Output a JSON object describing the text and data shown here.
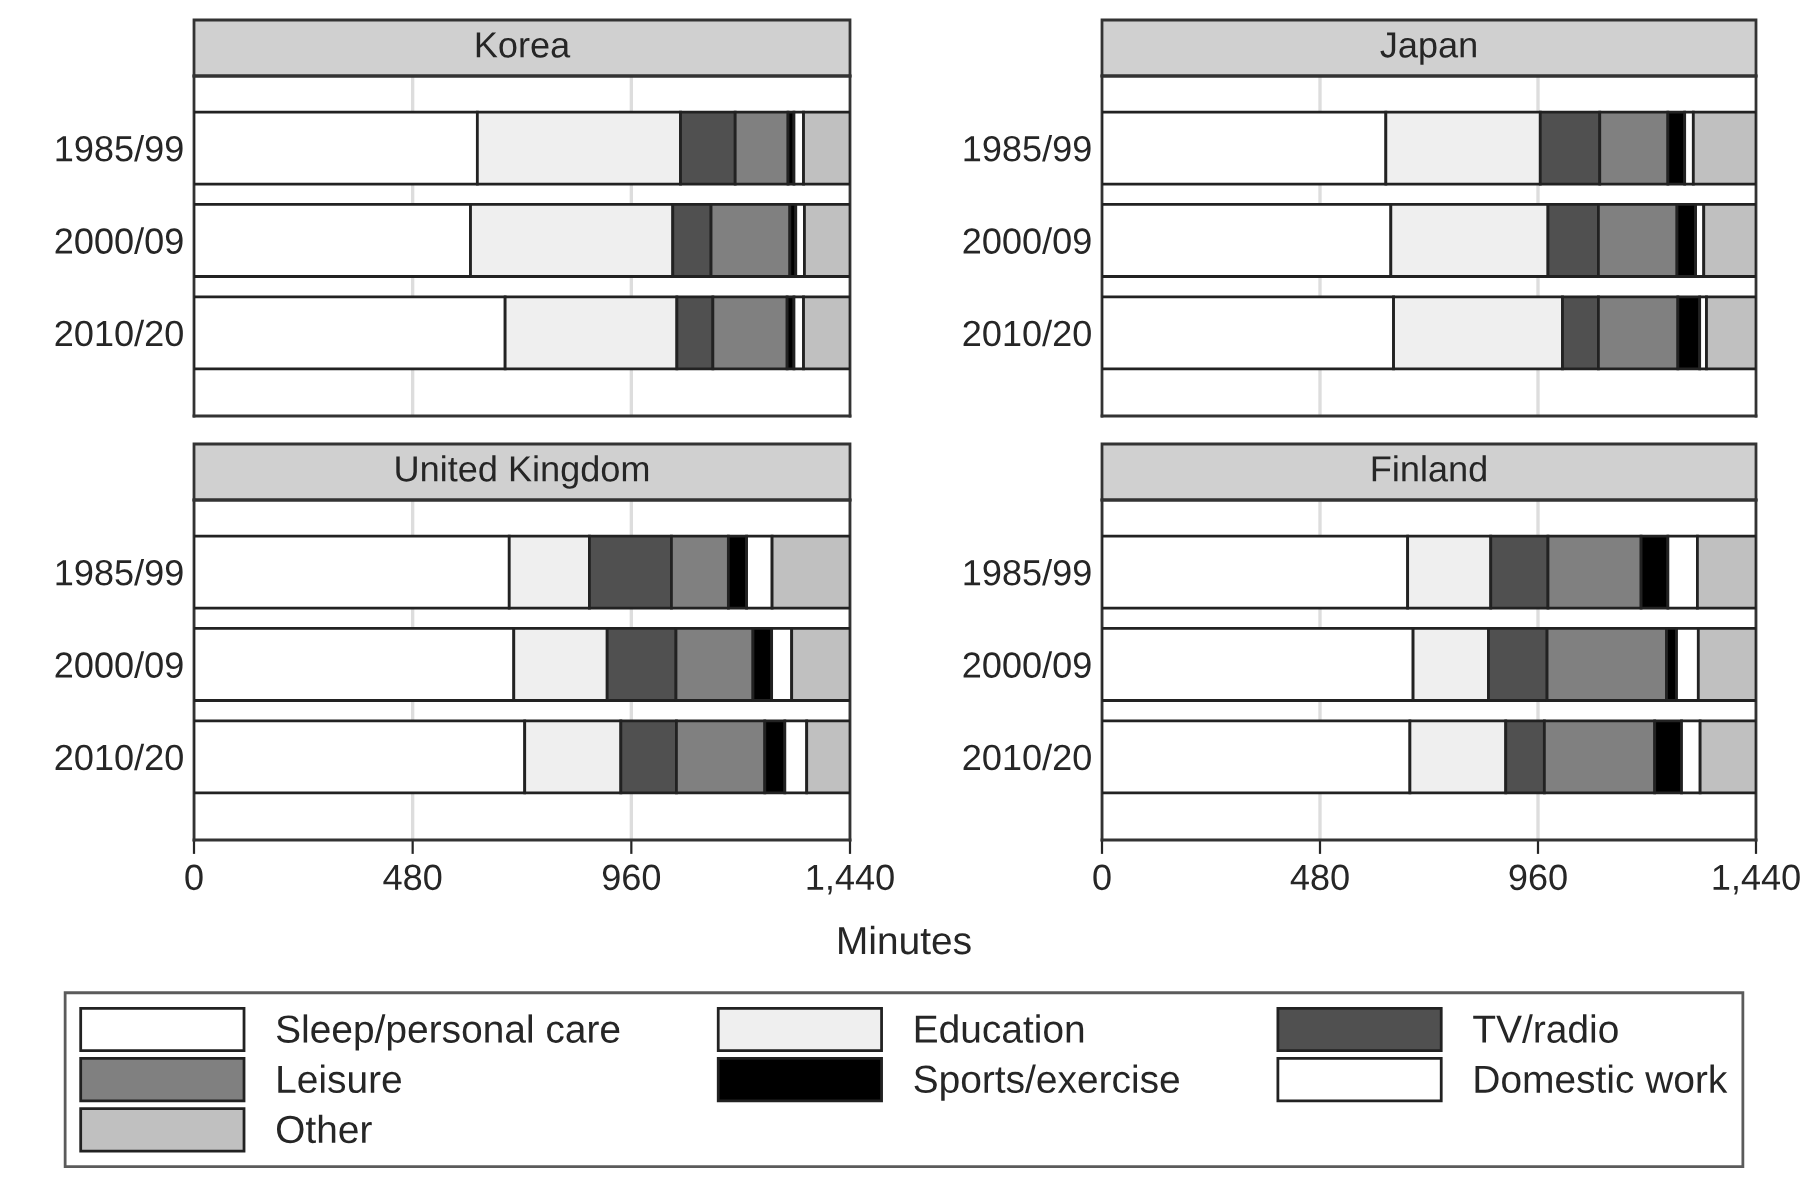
{
  "chart_data": [
    {
      "type": "bar",
      "orientation": "horizontal",
      "stacked": true,
      "title": "Korea",
      "categories": [
        "1985/99",
        "2000/09",
        "2010/20"
      ],
      "xlim": [
        0,
        1440
      ],
      "xticks": [
        480,
        960
      ],
      "grid": "x",
      "tick_labels": "y",
      "legend": "bottom",
      "series": [
        {
          "name": "Sleep/personal care",
          "color": "#ffffff",
          "values": [
            622,
            607,
            683
          ]
        },
        {
          "name": "Education",
          "color": "#efefef",
          "values": [
            446,
            444,
            377
          ]
        },
        {
          "name": "TV/radio",
          "color": "#505050",
          "values": [
            120,
            84,
            79
          ]
        },
        {
          "name": "Leisure",
          "color": "#808080",
          "values": [
            116,
            173,
            163
          ]
        },
        {
          "name": "Sports/exercise",
          "color": "#000000",
          "values": [
            13,
            13,
            15
          ]
        },
        {
          "name": "Domestic work",
          "color": "#ffffff",
          "values": [
            21,
            19,
            21
          ]
        },
        {
          "name": "Other",
          "color": "#c0c0c0",
          "values": [
            102,
            100,
            102
          ]
        }
      ]
    },
    {
      "type": "bar",
      "orientation": "horizontal",
      "stacked": true,
      "title": "Japan",
      "categories": [
        "1985/99",
        "2000/09",
        "2010/20"
      ],
      "xlim": [
        0,
        1440
      ],
      "xticks": [
        480,
        960
      ],
      "grid": "x",
      "tick_labels": "y",
      "series": [
        {
          "color": "#ffffff",
          "values": [
            625,
            636,
            642
          ]
        },
        {
          "color": "#efefef",
          "values": [
            340,
            346,
            372
          ]
        },
        {
          "color": "#505050",
          "values": [
            131,
            111,
            79
          ]
        },
        {
          "color": "#808080",
          "values": [
            150,
            173,
            175
          ]
        },
        {
          "color": "#000000",
          "values": [
            37,
            41,
            48
          ]
        },
        {
          "color": "#ffffff",
          "values": [
            19,
            18,
            15
          ]
        },
        {
          "color": "#c0c0c0",
          "values": [
            138,
            115,
            109
          ]
        }
      ]
    },
    {
      "type": "bar",
      "orientation": "horizontal",
      "stacked": true,
      "title": "United Kingdom",
      "categories": [
        "1985/99",
        "2000/09",
        "2010/20"
      ],
      "xlim": [
        0,
        1440
      ],
      "xticks": [
        0,
        480,
        960,
        {
          "value": 1440,
          "label": "1,440"
        }
      ],
      "grid": "x",
      "xlabel": "Minutes",
      "series": [
        {
          "color": "#ffffff",
          "values": [
            692,
            702,
            726
          ]
        },
        {
          "color": "#efefef",
          "values": [
            176,
            205,
            211
          ]
        },
        {
          "color": "#505050",
          "values": [
            180,
            151,
            122
          ]
        },
        {
          "color": "#808080",
          "values": [
            125,
            169,
            194
          ]
        },
        {
          "color": "#000000",
          "values": [
            40,
            41,
            44
          ]
        },
        {
          "color": "#ffffff",
          "values": [
            56,
            44,
            48
          ]
        },
        {
          "color": "#c0c0c0",
          "values": [
            171,
            128,
            95
          ]
        }
      ]
    },
    {
      "type": "bar",
      "orientation": "horizontal",
      "stacked": true,
      "title": "Finland",
      "categories": [
        "1985/99",
        "2000/09",
        "2010/20"
      ],
      "xlim": [
        0,
        1440
      ],
      "xticks": [
        0,
        480,
        960,
        {
          "value": 1440,
          "label": "1,440"
        }
      ],
      "grid": "x",
      "series": [
        {
          "color": "#ffffff",
          "values": [
            673,
            685,
            678
          ]
        },
        {
          "color": "#efefef",
          "values": [
            183,
            166,
            211
          ]
        },
        {
          "color": "#505050",
          "values": [
            126,
            129,
            85
          ]
        },
        {
          "color": "#808080",
          "values": [
            205,
            263,
            243
          ]
        },
        {
          "color": "#000000",
          "values": [
            59,
            22,
            59
          ]
        },
        {
          "color": "#ffffff",
          "values": [
            65,
            48,
            41
          ]
        },
        {
          "color": "#c0c0c0",
          "values": [
            129,
            127,
            123
          ]
        }
      ]
    }
  ]
}
